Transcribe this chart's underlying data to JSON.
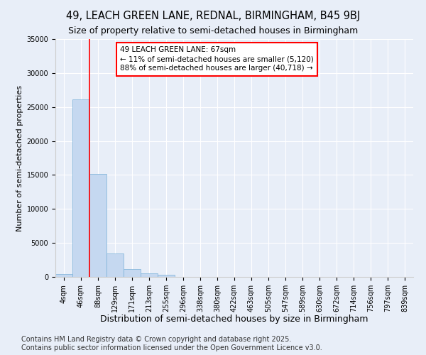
{
  "title_line1": "49, LEACH GREEN LANE, REDNAL, BIRMINGHAM, B45 9BJ",
  "title_line2": "Size of property relative to semi-detached houses in Birmingham",
  "xlabel": "Distribution of semi-detached houses by size in Birmingham",
  "ylabel": "Number of semi-detached properties",
  "categories": [
    "4sqm",
    "46sqm",
    "88sqm",
    "129sqm",
    "171sqm",
    "213sqm",
    "255sqm",
    "296sqm",
    "338sqm",
    "380sqm",
    "422sqm",
    "463sqm",
    "505sqm",
    "547sqm",
    "589sqm",
    "630sqm",
    "672sqm",
    "714sqm",
    "756sqm",
    "797sqm",
    "839sqm"
  ],
  "values": [
    400,
    26100,
    15200,
    3400,
    1100,
    500,
    300,
    0,
    0,
    0,
    0,
    0,
    0,
    0,
    0,
    0,
    0,
    0,
    0,
    0,
    0
  ],
  "bar_color": "#c5d8f0",
  "bar_edge_color": "#7ab0d8",
  "vline_x": 1.5,
  "vline_color": "red",
  "annotation_title": "49 LEACH GREEN LANE: 67sqm",
  "annotation_line2": "← 11% of semi-detached houses are smaller (5,120)",
  "annotation_line3": "88% of semi-detached houses are larger (40,718) →",
  "ylim": [
    0,
    35000
  ],
  "yticks": [
    0,
    5000,
    10000,
    15000,
    20000,
    25000,
    30000,
    35000
  ],
  "background_color": "#e8eef8",
  "plot_bg_color": "#e8eef8",
  "footnote": "Contains HM Land Registry data © Crown copyright and database right 2025.\nContains public sector information licensed under the Open Government Licence v3.0.",
  "title_fontsize": 10.5,
  "subtitle_fontsize": 9,
  "footnote_fontsize": 7,
  "tick_fontsize": 7,
  "annotation_fontsize": 7.5,
  "ylabel_fontsize": 8,
  "xlabel_fontsize": 9
}
